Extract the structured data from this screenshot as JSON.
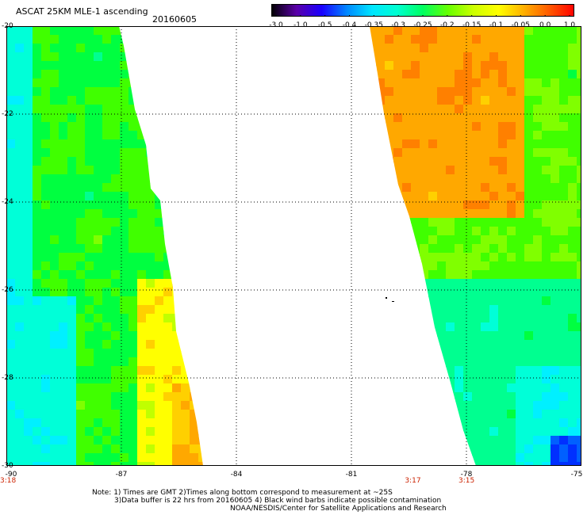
{
  "header": {
    "title": "ASCAT 25KM MLE-1 ascending",
    "date": "20160605"
  },
  "colorbar": {
    "labels": [
      "-3.0",
      "-1.0",
      "-0.5",
      "-0.4",
      "-0.35",
      "-0.3",
      "-0.25",
      "-0.2",
      "-0.15",
      "-0.1",
      "-0.05",
      "0.0",
      "1.0"
    ],
    "colors": [
      "#000000",
      "#5a00a8",
      "#1a00ff",
      "#0088ff",
      "#00e6ff",
      "#00ffd0",
      "#00ff60",
      "#66ff00",
      "#ccff00",
      "#ffff00",
      "#ffb000",
      "#ff5a00",
      "#ff0000"
    ]
  },
  "map": {
    "lat_labels": [
      "-20",
      "-22",
      "-24",
      "-26",
      "-28",
      "-30"
    ],
    "lon_labels": [
      "-90",
      "-87",
      "-84",
      "-81",
      "-78",
      "-75"
    ],
    "lat_range": [
      -30,
      -20
    ],
    "lon_range": [
      -90,
      -75
    ],
    "grid": true,
    "pass_times": [
      {
        "label": "3:18",
        "lon": -90
      },
      {
        "label": "3:17",
        "lon": -79.4
      },
      {
        "label": "3:15",
        "lon": -78
      }
    ]
  },
  "notes": {
    "line1": "Note: 1) Times are GMT 2)Times along bottom correspond to measurement at ~25S",
    "line2": "3)Data buffer is 22 hrs from 20160605 4) Black wind barbs indicate possible contamination",
    "line3": "NOAA/NESDIS/Center for Satellite Applications and Research"
  }
}
